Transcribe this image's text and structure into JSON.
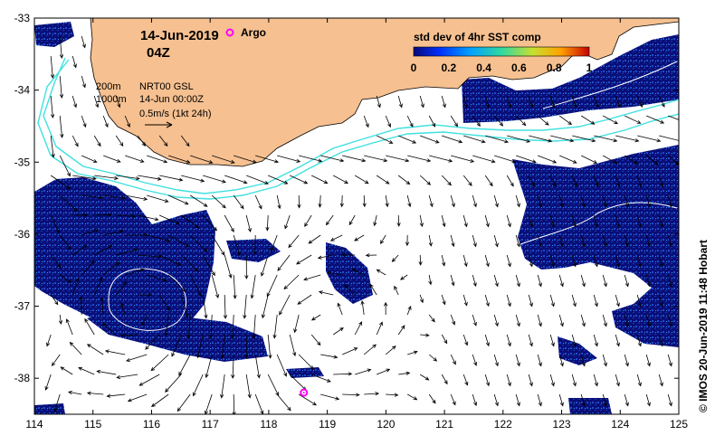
{
  "map": {
    "date_label": "14-Jun-2019",
    "time_label": "04Z",
    "argo_label": "Argo",
    "legend_lines": {
      "line1": "200m",
      "line2": "1000m",
      "product": "NRT00 GSL",
      "datetime": "14-Jun 00:00Z",
      "scale": "0.5m/s (1kt 24h)"
    },
    "colorbar": {
      "title": "std dev of 4hr SST comp",
      "ticks": [
        "0",
        "0.2",
        "0.4",
        "0.6",
        "0.8",
        "1"
      ],
      "stops": [
        "#08087a",
        "#0030ff",
        "#00a0ff",
        "#30d8a0",
        "#c8e030",
        "#ffa000",
        "#c80000"
      ]
    },
    "credit": "© IMOS 20-Jun-2019 11:48 Hobart",
    "lon_ticks": [
      "114",
      "115",
      "116",
      "117",
      "118",
      "119",
      "120",
      "121",
      "122",
      "123",
      "124",
      "125"
    ],
    "lat_ticks": [
      "-33",
      "-34",
      "-35",
      "-36",
      "-37",
      "-38"
    ],
    "colors": {
      "land": "#f6c090",
      "data_dark": "#0a0f78",
      "data_mid": "#1e4bd2",
      "contour_200m": "#40e0e0",
      "contour_1000m": "#40e0e0",
      "argo_marker": "#ff00ff",
      "arrows": "#000000"
    },
    "argo_float": {
      "lon": 118.6,
      "lat": -38.2
    }
  }
}
